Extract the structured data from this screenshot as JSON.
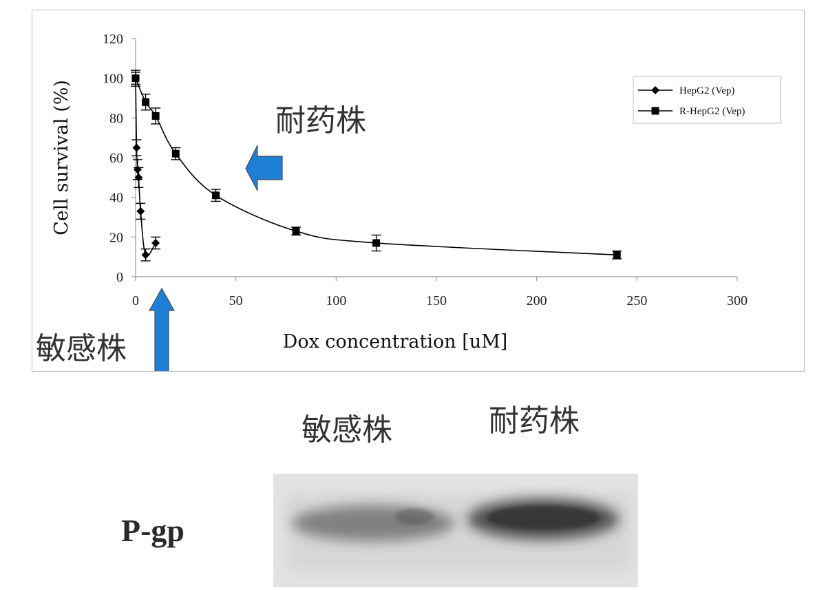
{
  "chart_data": {
    "type": "line",
    "xlabel": "Dox concentration [uM]",
    "ylabel": "Cell survival (%)",
    "xlim": [
      0,
      300
    ],
    "ylim": [
      0,
      120
    ],
    "xticks": [
      0,
      50,
      100,
      150,
      200,
      250,
      300
    ],
    "yticks": [
      0,
      20,
      40,
      60,
      80,
      100,
      120
    ],
    "grid": false,
    "legend_position": "top-right",
    "series": [
      {
        "name": "HepG2 (Vep)",
        "marker": "diamond",
        "color": "#000000",
        "x": [
          0,
          0.5,
          1,
          1.5,
          2.5,
          5,
          10
        ],
        "y": [
          100,
          65,
          54,
          50,
          33,
          11,
          17
        ],
        "err": [
          3,
          4,
          5,
          5,
          4,
          3,
          3
        ]
      },
      {
        "name": "R-HepG2 (Vep)",
        "marker": "square",
        "color": "#000000",
        "x": [
          0,
          5,
          10,
          20,
          40,
          80,
          120,
          240
        ],
        "y": [
          100,
          88,
          81,
          62,
          41,
          23,
          17,
          11
        ],
        "err": [
          4,
          4,
          4,
          3,
          3,
          2,
          4,
          2
        ]
      }
    ],
    "annotations": [
      {
        "text": "耐药株"
      },
      {
        "text": "敏感株"
      }
    ]
  },
  "blot": {
    "label": "P-gp",
    "lanes": [
      "敏感株",
      "耐药株"
    ],
    "band_intensity": [
      0.55,
      0.85
    ]
  },
  "colors": {
    "arrow": "#1e7fd6",
    "arrow_edge": "#4d4d4d",
    "blot_bg": "#e2e2e2",
    "band": "#3a3a3a"
  }
}
